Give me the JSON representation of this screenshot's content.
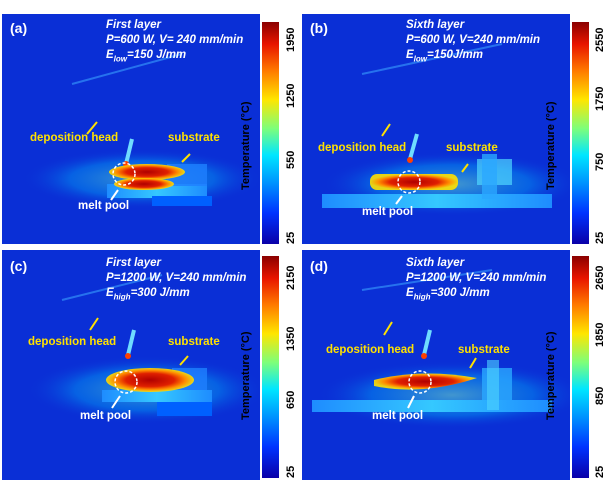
{
  "colors": {
    "annotation": "#ffe100",
    "background_blue": "#0a2fd6"
  },
  "colorbar_title": "Temperature (°C)",
  "panels": {
    "a": {
      "label": "(a)",
      "line1": "First layer",
      "line2": "P=600 W, V= 240 mm/min",
      "e_prefix": "E",
      "e_sub": "low",
      "e_suffix": "=150 J/mm",
      "ticks": [
        "1950",
        "1250",
        "550",
        "25"
      ]
    },
    "b": {
      "label": "(b)",
      "line1": "Sixth layer",
      "line2": "P=600 W, V=240 mm/min",
      "e_prefix": "E",
      "e_sub": "low",
      "e_suffix": "=150J/mm",
      "ticks": [
        "2550",
        "1750",
        "750",
        "25"
      ]
    },
    "c": {
      "label": "(c)",
      "line1": "First layer",
      "line2": "P=1200 W, V=240 mm/min",
      "e_prefix": "E",
      "e_sub": "high",
      "e_suffix": "=300 J/mm",
      "ticks": [
        "2150",
        "1350",
        "650",
        "25"
      ]
    },
    "d": {
      "label": "(d)",
      "line1": "Sixth layer",
      "line2": "P=1200 W, V=240 mm/min",
      "e_prefix": "E",
      "e_sub": "high",
      "e_suffix": "=300 J/mm",
      "ticks": [
        "2650",
        "1850",
        "850",
        "25"
      ]
    }
  },
  "annotations": {
    "deposition_head": "deposition head",
    "substrate": "substrate",
    "melt_pool": "melt pool"
  }
}
